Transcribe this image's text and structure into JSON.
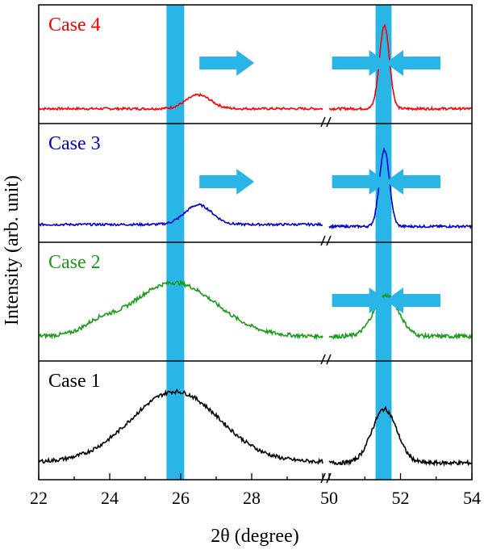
{
  "chart_data": {
    "type": "line",
    "xlabel": "2θ (degree)",
    "ylabel": "Intensity (arb. unit)",
    "x_segments": [
      {
        "xlim": [
          22,
          30
        ],
        "ticks": [
          "22",
          "24",
          "26",
          "28"
        ]
      },
      {
        "xlim": [
          50,
          54
        ],
        "ticks": [
          "50",
          "52",
          "54"
        ]
      }
    ],
    "axis_break": "//",
    "highlight_bands": [
      {
        "from": 25.6,
        "to": 26.1,
        "color": "#29b6e6"
      },
      {
        "from": 51.3,
        "to": 51.75,
        "color": "#29b6e6"
      }
    ],
    "panels": [
      {
        "name": "Case 4",
        "color": "#ff0000",
        "peaks_low": [
          {
            "x": 26.5,
            "amp": 0.14,
            "w": 0.35
          }
        ],
        "base_low": 0.02,
        "noise": 0.012,
        "peaks_high": [
          {
            "x": 51.55,
            "amp": 0.85,
            "w": 0.14
          }
        ],
        "base_high": 0.02,
        "arrows": [
          {
            "x": 27.3,
            "dir": "right"
          },
          {
            "x": 50.85,
            "dir": "right"
          },
          {
            "x": 52.35,
            "dir": "left"
          }
        ]
      },
      {
        "name": "Case 3",
        "color": "#0000d0",
        "peaks_low": [
          {
            "x": 26.5,
            "amp": 0.2,
            "w": 0.38
          }
        ],
        "base_low": 0.05,
        "noise": 0.012,
        "peaks_high": [
          {
            "x": 51.55,
            "amp": 0.78,
            "w": 0.14
          }
        ],
        "base_high": 0.03,
        "arrows": [
          {
            "x": 27.3,
            "dir": "right"
          },
          {
            "x": 50.85,
            "dir": "right"
          },
          {
            "x": 52.35,
            "dir": "left"
          }
        ]
      },
      {
        "name": "Case 2",
        "color": "#1a9b1a",
        "peaks_low": [
          {
            "x": 25.8,
            "amp": 0.55,
            "w": 1.2
          },
          {
            "x": 23.7,
            "amp": 0.08,
            "w": 0.4
          }
        ],
        "base_low": 0.12,
        "noise": 0.02,
        "peaks_high": [
          {
            "x": 51.6,
            "amp": 0.42,
            "w": 0.35
          }
        ],
        "base_high": 0.12,
        "arrows": [
          {
            "x": 50.85,
            "dir": "right"
          },
          {
            "x": 52.35,
            "dir": "left"
          }
        ]
      },
      {
        "name": "Case 1",
        "color": "#000000",
        "peaks_low": [
          {
            "x": 25.85,
            "amp": 0.72,
            "w": 1.25
          }
        ],
        "base_low": 0.05,
        "noise": 0.02,
        "peaks_high": [
          {
            "x": 51.55,
            "amp": 0.55,
            "w": 0.35
          }
        ],
        "base_high": 0.04,
        "arrows": []
      }
    ]
  }
}
